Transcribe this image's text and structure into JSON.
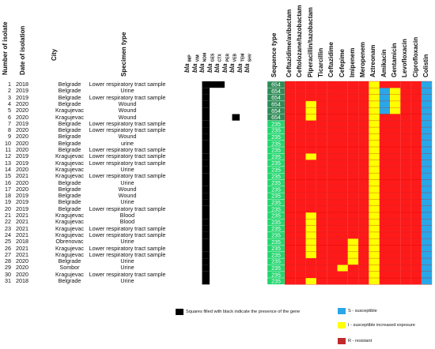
{
  "headers": {
    "number": "Number of isolate",
    "date": "Date of isolation",
    "city": "City",
    "specimen": "Specimen type",
    "sequence_type": "Sequence type"
  },
  "genes": [
    {
      "prefix": "bla",
      "sub": "IMP"
    },
    {
      "prefix": "bla",
      "sub": "VIM"
    },
    {
      "prefix": "bla",
      "sub": "NDM"
    },
    {
      "prefix": "bla",
      "sub": "GES"
    },
    {
      "prefix": "bla",
      "sub": "CTX"
    },
    {
      "prefix": "bla",
      "sub": "PER"
    },
    {
      "prefix": "bla",
      "sub": "VEB"
    },
    {
      "prefix": "bla",
      "sub": "TEM"
    },
    {
      "prefix": "bla",
      "sub": "SHV"
    }
  ],
  "antibiotics": [
    "Ceftazidime/avibactam",
    "Ceftolozane/tazobactam",
    "Piperacillin/tazobactam",
    "Ticarcillin",
    "Ceftazidime",
    "Cefepime",
    "Imipenem",
    "Meropenem",
    "Aztreonam",
    "Amikacin",
    "Gentamicin",
    "Levofloxacin",
    "Ciprofloxacin",
    "Colistin"
  ],
  "isolates": [
    {
      "n": "1",
      "year": "2018",
      "city": "Belgrade",
      "specimen": "Lower respiratory tract sample",
      "st": "654"
    },
    {
      "n": "2",
      "year": "2019",
      "city": "Belgrade",
      "specimen": "Urine",
      "st": "654"
    },
    {
      "n": "3",
      "year": "2019",
      "city": "Belgrade",
      "specimen": "Lower respiratory tract sample",
      "st": "654"
    },
    {
      "n": "4",
      "year": "2020",
      "city": "Belgrade",
      "specimen": "Wound",
      "st": "654"
    },
    {
      "n": "5",
      "year": "2020",
      "city": "Kragujevac",
      "specimen": "Wound",
      "st": "654"
    },
    {
      "n": "6",
      "year": "2020",
      "city": "Kragujevac",
      "specimen": "Wound",
      "st": "654"
    },
    {
      "n": "7",
      "year": "2019",
      "city": "Belgrade",
      "specimen": "Lower respiratory tract sample",
      "st": "235"
    },
    {
      "n": "8",
      "year": "2020",
      "city": "Belgrade",
      "specimen": "Lower respiratory tract sample",
      "st": "235"
    },
    {
      "n": "9",
      "year": "2020",
      "city": "Belgrade",
      "specimen": "Wound",
      "st": "235"
    },
    {
      "n": "10",
      "year": "2020",
      "city": "Belgrade",
      "specimen": "urine",
      "st": "235"
    },
    {
      "n": "11",
      "year": "2020",
      "city": "Belgrade",
      "specimen": "Lower respiratory tract sample",
      "st": "235"
    },
    {
      "n": "12",
      "year": "2019",
      "city": "Kragujevac",
      "specimen": "Lower respiratory tract sample",
      "st": "235"
    },
    {
      "n": "13",
      "year": "2019",
      "city": "Kragujevac",
      "specimen": "Lower respiratory tract sample",
      "st": "235"
    },
    {
      "n": "14",
      "year": "2020",
      "city": "Kragujevac",
      "specimen": "Urine",
      "st": "235"
    },
    {
      "n": "15",
      "year": "2021",
      "city": "Kragujevac",
      "specimen": "Lower respiratory tract sample",
      "st": "235"
    },
    {
      "n": "16",
      "year": "2020",
      "city": "Belgrade",
      "specimen": "Urine",
      "st": "235"
    },
    {
      "n": "17",
      "year": "2020",
      "city": "Belgrade",
      "specimen": "Wound",
      "st": "235"
    },
    {
      "n": "18",
      "year": "2019",
      "city": "Belgrade",
      "specimen": "Wound",
      "st": "235"
    },
    {
      "n": "19",
      "year": "2019",
      "city": "Belgrade",
      "specimen": "Urine",
      "st": "235"
    },
    {
      "n": "20",
      "year": "2019",
      "city": "Belgrade",
      "specimen": "Lower respiratory tract sample",
      "st": "235"
    },
    {
      "n": "21",
      "year": "2021",
      "city": "Kragujevac",
      "specimen": "Blood",
      "st": "235"
    },
    {
      "n": "22",
      "year": "2021",
      "city": "Kragujevac",
      "specimen": "Blood",
      "st": "235"
    },
    {
      "n": "23",
      "year": "2021",
      "city": "Kragujevac",
      "specimen": "Lower respiratory tract sample",
      "st": "235"
    },
    {
      "n": "24",
      "year": "2021",
      "city": "Kragujevac",
      "specimen": "Lower respiratory tract sample",
      "st": "235"
    },
    {
      "n": "25",
      "year": "2018",
      "city": "Obrenovac",
      "specimen": "Urine",
      "st": "235"
    },
    {
      "n": "26",
      "year": "2021",
      "city": "Kragujevac",
      "specimen": "Lower respiratory tract sample",
      "st": "235"
    },
    {
      "n": "27",
      "year": "2021",
      "city": "Kragujevac",
      "specimen": "Lower respiratory tract sample",
      "st": "235"
    },
    {
      "n": "28",
      "year": "2020",
      "city": "Belgrade",
      "specimen": "Urine",
      "st": "235"
    },
    {
      "n": "29",
      "year": "2020",
      "city": "Sombor",
      "specimen": "Urine",
      "st": "235"
    },
    {
      "n": "30",
      "year": "2020",
      "city": "Kragujevac",
      "specimen": "Lower respiratory tract sample",
      "st": "235"
    },
    {
      "n": "31",
      "year": "2018",
      "city": "Belgrade",
      "specimen": "Urine",
      "st": "235"
    }
  ],
  "gene_presence": [
    [
      1,
      2,
      3
    ],
    [
      1
    ],
    [
      1
    ],
    [
      1
    ],
    [
      1
    ],
    [
      1,
      5
    ],
    [
      1
    ],
    [
      1
    ],
    [
      1
    ],
    [
      1
    ],
    [
      1
    ],
    [
      1
    ],
    [
      1
    ],
    [
      1
    ],
    [
      1
    ],
    [
      1
    ],
    [
      1
    ],
    [
      1
    ],
    [
      1
    ],
    [
      1
    ],
    [
      1
    ],
    [
      1
    ],
    [
      1
    ],
    [
      1
    ],
    [
      1
    ],
    [
      1
    ],
    [
      1
    ],
    [
      1
    ],
    [
      1
    ],
    [
      1
    ],
    [
      1
    ]
  ],
  "susceptibility": {
    "default": "R",
    "overrides": [
      {
        "rows": [
          1,
          31
        ],
        "col": 8,
        "v": "I"
      },
      {
        "rows": [
          1,
          31
        ],
        "col": 13,
        "v": "S"
      },
      {
        "rows": [
          4,
          6
        ],
        "col": 2,
        "v": "I"
      },
      {
        "rows": [
          2,
          5
        ],
        "col": 9,
        "v": "S"
      },
      {
        "rows": [
          2,
          5
        ],
        "col": 10,
        "v": "I"
      },
      {
        "rows": [
          12,
          12
        ],
        "col": 2,
        "v": "I"
      },
      {
        "rows": [
          21,
          27
        ],
        "col": 2,
        "v": "I"
      },
      {
        "rows": [
          25,
          28
        ],
        "col": 6,
        "v": "I"
      },
      {
        "rows": [
          29,
          29
        ],
        "col": 5,
        "v": "I"
      },
      {
        "rows": [
          31,
          31
        ],
        "col": 2,
        "v": "I"
      }
    ]
  },
  "colors": {
    "gene_present": "#000000",
    "st_654": "#2e8b57",
    "st_235": "#22d66e",
    "S": "#2aa7e6",
    "I": "#ffff00",
    "R": "#ff1a1a",
    "grid_line": "#c00000"
  },
  "legend": {
    "gene_note": "Squares filled with black indicate the presence of the gene",
    "S": "S - susceptible",
    "I": "I - susceptible increased exposure",
    "R": "R - resistant"
  }
}
